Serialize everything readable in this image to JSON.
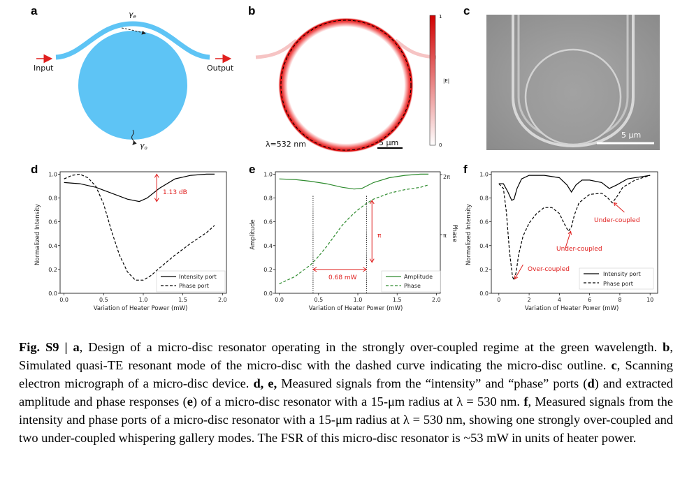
{
  "panel_letters": {
    "a": "a",
    "b": "b",
    "c": "c",
    "d": "d",
    "e": "e",
    "f": "f"
  },
  "panel_a": {
    "input": "Input",
    "output": "Output",
    "gamma_e": "γ",
    "gamma_e_sub": "e",
    "gamma_o": "γ",
    "gamma_o_sub": "o",
    "colors": {
      "disc": "#5ec4f5",
      "arrow": "#e0201f"
    }
  },
  "panel_b": {
    "wavelength": "λ=532 nm",
    "scalebar": "5 μm",
    "colorbar_max": "1",
    "colorbar_min": "0",
    "colorbar_label": "|E|"
  },
  "panel_c": {
    "scalebar": "5 μm"
  },
  "chart_data": [
    {
      "id": "d",
      "type": "line",
      "xlabel": "Variation of Heater Power (mW)",
      "ylabel": "Normalized Intensity",
      "xlim": [
        -0.05,
        2.05
      ],
      "ylim": [
        0,
        1.02
      ],
      "xticks": [
        "0.0",
        "0.5",
        "1.0",
        "1.5",
        "2.0"
      ],
      "yticks": [
        "0.0",
        "0.2",
        "0.4",
        "0.6",
        "0.8",
        "1.0"
      ],
      "legend": "lower-right",
      "annotation": "1.13 dB",
      "series": [
        {
          "name": "Intensity port",
          "style": "solid",
          "color": "#000000",
          "x": [
            0,
            0.2,
            0.4,
            0.6,
            0.8,
            0.95,
            1.05,
            1.2,
            1.4,
            1.6,
            1.8,
            1.9
          ],
          "y": [
            0.93,
            0.92,
            0.89,
            0.84,
            0.79,
            0.77,
            0.8,
            0.88,
            0.96,
            0.99,
            1.0,
            1.0
          ]
        },
        {
          "name": "Phase port",
          "style": "dashed",
          "color": "#000000",
          "x": [
            0,
            0.1,
            0.2,
            0.3,
            0.4,
            0.5,
            0.6,
            0.7,
            0.8,
            0.9,
            1.0,
            1.1,
            1.2,
            1.4,
            1.6,
            1.8,
            1.9
          ],
          "y": [
            0.96,
            0.99,
            1.0,
            0.97,
            0.9,
            0.75,
            0.52,
            0.32,
            0.18,
            0.11,
            0.11,
            0.15,
            0.21,
            0.32,
            0.42,
            0.51,
            0.57
          ]
        }
      ]
    },
    {
      "id": "e",
      "type": "line",
      "xlabel": "Variation of Heater Power (mW)",
      "ylabel": "Amplitude",
      "ylabel_right": "Phase",
      "xlim": [
        -0.05,
        2.05
      ],
      "ylim": [
        0,
        1.02
      ],
      "xticks": [
        "0.0",
        "0.5",
        "1.0",
        "1.5",
        "2.0"
      ],
      "yticks": [
        "0.0",
        "0.2",
        "0.4",
        "0.6",
        "0.8",
        "1.0"
      ],
      "right_ticks": [
        "2π",
        "π"
      ],
      "legend": "lower-right",
      "annotations": [
        "π",
        "0.68 mW"
      ],
      "series": [
        {
          "name": "Amplitude",
          "style": "solid",
          "color": "#2e8b2e",
          "x": [
            0,
            0.2,
            0.4,
            0.6,
            0.8,
            0.95,
            1.05,
            1.2,
            1.4,
            1.6,
            1.8,
            1.9
          ],
          "y": [
            0.96,
            0.955,
            0.94,
            0.92,
            0.89,
            0.875,
            0.88,
            0.93,
            0.97,
            0.99,
            1.0,
            1.0
          ]
        },
        {
          "name": "Phase",
          "style": "dashed",
          "color": "#2e8b2e",
          "x": [
            0,
            0.1,
            0.2,
            0.3,
            0.4,
            0.5,
            0.6,
            0.7,
            0.8,
            0.9,
            1.0,
            1.1,
            1.2,
            1.4,
            1.6,
            1.8,
            1.9
          ],
          "y": [
            0.08,
            0.11,
            0.14,
            0.19,
            0.24,
            0.31,
            0.39,
            0.48,
            0.57,
            0.64,
            0.7,
            0.75,
            0.79,
            0.84,
            0.87,
            0.89,
            0.91
          ]
        }
      ]
    },
    {
      "id": "f",
      "type": "line",
      "xlabel": "Variation of Heater Power (mW)",
      "ylabel": "Normalized Intensity",
      "xlim": [
        -0.5,
        10.5
      ],
      "ylim": [
        0,
        1.02
      ],
      "xticks": [
        "0",
        "2",
        "4",
        "6",
        "8",
        "10"
      ],
      "yticks": [
        "0.0",
        "0.2",
        "0.4",
        "0.6",
        "0.8",
        "1.0"
      ],
      "legend": "lower-right",
      "annotations": [
        "Over-coupled",
        "Under-coupled",
        "Under-coupled"
      ],
      "series": [
        {
          "name": "Intensity port",
          "style": "solid",
          "color": "#000000",
          "x": [
            0,
            0.3,
            0.6,
            0.85,
            1.0,
            1.2,
            1.5,
            2,
            3,
            4,
            4.5,
            4.8,
            5.1,
            5.5,
            6,
            6.8,
            7.3,
            7.8,
            8.5,
            9.5,
            10
          ],
          "y": [
            0.92,
            0.92,
            0.85,
            0.78,
            0.79,
            0.88,
            0.96,
            0.99,
            0.99,
            0.97,
            0.91,
            0.85,
            0.91,
            0.95,
            0.95,
            0.93,
            0.88,
            0.91,
            0.96,
            0.98,
            0.99
          ]
        },
        {
          "name": "Phase port",
          "style": "dashed",
          "color": "#000000",
          "x": [
            0,
            0.3,
            0.5,
            0.7,
            0.9,
            1.0,
            1.15,
            1.3,
            1.6,
            2,
            2.5,
            3,
            3.5,
            4,
            4.3,
            4.6,
            4.8,
            5.0,
            5.3,
            6,
            6.8,
            7.2,
            7.5,
            7.8,
            8.2,
            9,
            10
          ],
          "y": [
            0.92,
            0.88,
            0.68,
            0.35,
            0.14,
            0.11,
            0.18,
            0.32,
            0.48,
            0.59,
            0.67,
            0.72,
            0.72,
            0.67,
            0.59,
            0.52,
            0.56,
            0.66,
            0.76,
            0.83,
            0.84,
            0.8,
            0.76,
            0.81,
            0.89,
            0.95,
            0.99
          ]
        }
      ]
    }
  ],
  "caption": {
    "fig_label": "Fig. S9 | ",
    "a": "a",
    "t1": ", Design of a micro-disc resonator operating in the strongly over-coupled regime at the green wavelength. ",
    "b": "b",
    "t2": ", Simulated quasi-TE resonant mode of the micro-disc with the dashed curve indicating the micro-disc outline. ",
    "c": "c",
    "t3": ", Scanning electron micrograph of a micro-disc device. ",
    "de": "d, e,",
    "t4": " Measured signals from the “intensity” and “phase” ports (",
    "d": "d",
    "t5": ") and extracted amplitude and phase responses (",
    "e": "e",
    "t6": ") of a micro-disc resonator with a 15-μm radius at λ = 530 nm. ",
    "f": "f",
    "t7": ", Measured signals from the intensity and phase ports of a micro-disc resonator with a 15-μm radius at λ = 530 nm, showing one strongly over-coupled and two under-coupled whispering gallery modes. The FSR of this micro-disc resonator is ~53 mW in units of heater power."
  }
}
